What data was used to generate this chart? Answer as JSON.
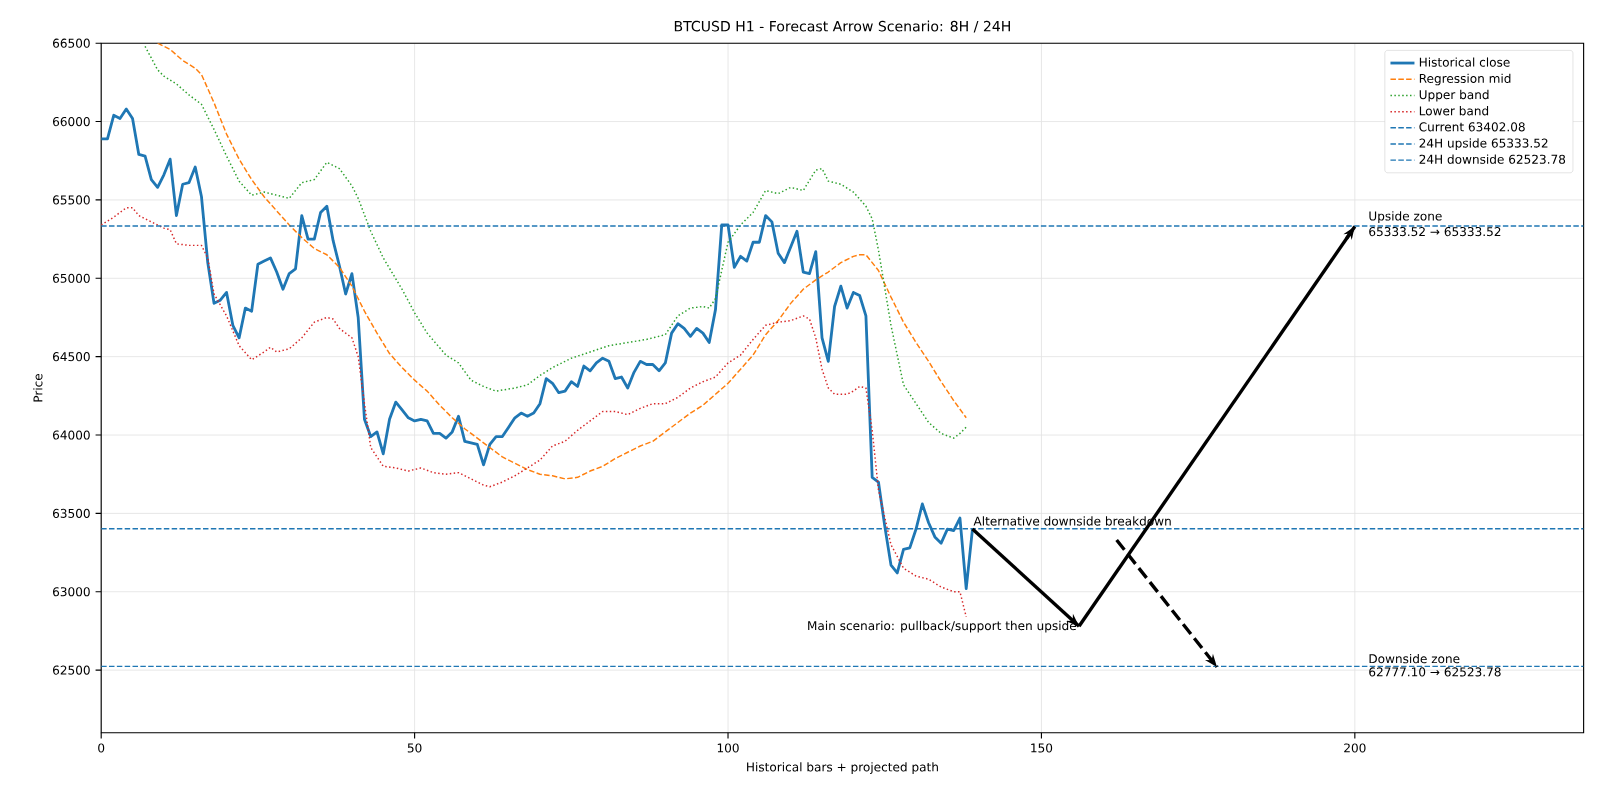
{
  "chart_data": {
    "type": "line",
    "title": "BTCUSD H1 - Forecast Arrow Scenario: 8H / 24H",
    "xlabel": "Historical bars + projected path",
    "ylabel": "Price",
    "xlim": [
      0,
      236.5
    ],
    "ylim": [
      62100,
      66500
    ],
    "xticks": [
      0,
      50,
      100,
      150,
      200
    ],
    "yticks": [
      62500,
      63000,
      63500,
      64000,
      64500,
      65000,
      65500,
      66000,
      66500
    ],
    "grid": true,
    "legend": "top right",
    "series": [
      {
        "name": "Historical close",
        "color": "#1f77b4",
        "line_style": "solid",
        "x": [
          0,
          1,
          2,
          3,
          4,
          5,
          6,
          7,
          8,
          9,
          10,
          11,
          12,
          13,
          14,
          15,
          16,
          17,
          18,
          19,
          20,
          21,
          22,
          23,
          24,
          25,
          26,
          27,
          28,
          29,
          30,
          31,
          32,
          33,
          34,
          35,
          36,
          37,
          38,
          39,
          40,
          41,
          42,
          43,
          44,
          45,
          46,
          47,
          48,
          49,
          50,
          51,
          52,
          53,
          54,
          55,
          56,
          57,
          58,
          59,
          60,
          61,
          62,
          63,
          64,
          65,
          66,
          67,
          68,
          69,
          70,
          71,
          72,
          73,
          74,
          75,
          76,
          77,
          78,
          79,
          80,
          81,
          82,
          83,
          84,
          85,
          86,
          87,
          88,
          89,
          90,
          91,
          92,
          93,
          94,
          95,
          96,
          97,
          98,
          99,
          100,
          101,
          102,
          103,
          104,
          105,
          106,
          107,
          108,
          109,
          110,
          111,
          112,
          113,
          114,
          115,
          116,
          117,
          118,
          119,
          120,
          121,
          122,
          123,
          124,
          125,
          126,
          127,
          128,
          129,
          130,
          131,
          132,
          133,
          134,
          135,
          136,
          137,
          138,
          139
        ],
        "values": [
          65890,
          65890,
          66040,
          66020,
          66080,
          66020,
          65790,
          65780,
          65630,
          65580,
          65660,
          65760,
          65400,
          65600,
          65610,
          65710,
          65520,
          65100,
          64840,
          64860,
          64910,
          64700,
          64620,
          64810,
          64790,
          65090,
          65110,
          65130,
          65040,
          64930,
          65030,
          65060,
          65400,
          65250,
          65250,
          65420,
          65460,
          65240,
          65080,
          64900,
          65030,
          64750,
          64100,
          63990,
          64020,
          63880,
          64100,
          64210,
          64160,
          64110,
          64090,
          64100,
          64090,
          64010,
          64010,
          63980,
          64020,
          64120,
          63960,
          63950,
          63940,
          63810,
          63940,
          63990,
          63990,
          64050,
          64110,
          64140,
          64120,
          64140,
          64200,
          64360,
          64330,
          64270,
          64280,
          64340,
          64310,
          64440,
          64410,
          64460,
          64490,
          64470,
          64360,
          64370,
          64300,
          64400,
          64470,
          64450,
          64450,
          64410,
          64460,
          64650,
          64710,
          64680,
          64630,
          64680,
          64650,
          64590,
          64800,
          65340,
          65340,
          65070,
          65140,
          65110,
          65230,
          65230,
          65400,
          65360,
          65160,
          65100,
          65200,
          65300,
          65040,
          65030,
          65170,
          64620,
          64470,
          64820,
          64950,
          64810,
          64910,
          64890,
          64760,
          63730,
          63700,
          63420,
          63170,
          63120,
          63270,
          63280,
          63400,
          63560,
          63440,
          63350,
          63310,
          63400,
          63390,
          63470,
          63020,
          63400
        ]
      },
      {
        "name": "Regression mid",
        "color": "#ff7f0e",
        "line_style": "dashed",
        "x": [
          9,
          11,
          13,
          15,
          16,
          18,
          20,
          22,
          24,
          26,
          28,
          30,
          32,
          34,
          36,
          38,
          40,
          42,
          44,
          46,
          48,
          50,
          52,
          54,
          56,
          58,
          60,
          62,
          64,
          66,
          68,
          70,
          72,
          74,
          76,
          78,
          80,
          82,
          84,
          86,
          88,
          90,
          92,
          94,
          96,
          98,
          100,
          102,
          104,
          106,
          108,
          110,
          112,
          114,
          116,
          118,
          120,
          121,
          122,
          124,
          126,
          128,
          130,
          132,
          134,
          136,
          138
        ],
        "values": [
          66500,
          66460,
          66390,
          66340,
          66300,
          66120,
          65920,
          65760,
          65630,
          65520,
          65430,
          65340,
          65260,
          65190,
          65150,
          65070,
          64950,
          64790,
          64650,
          64520,
          64430,
          64350,
          64280,
          64190,
          64110,
          64040,
          63980,
          63920,
          63860,
          63820,
          63780,
          63750,
          63740,
          63720,
          63730,
          63770,
          63800,
          63850,
          63890,
          63930,
          63960,
          64020,
          64080,
          64140,
          64190,
          64260,
          64330,
          64420,
          64510,
          64640,
          64730,
          64840,
          64930,
          64990,
          65040,
          65100,
          65140,
          65150,
          65150,
          65050,
          64880,
          64720,
          64590,
          64470,
          64340,
          64220,
          64110
        ]
      },
      {
        "name": "Upper band",
        "color": "#2ca02c",
        "line_style": "dotted",
        "x": [
          7,
          9,
          10,
          12,
          14,
          16,
          18,
          20,
          22,
          24,
          26,
          28,
          30,
          32,
          34,
          36,
          38,
          40,
          41,
          43,
          45,
          48,
          50,
          52,
          55,
          57,
          59,
          61,
          63,
          66,
          68,
          70,
          72,
          75,
          78,
          81,
          84,
          87,
          90,
          92,
          94,
          96,
          97,
          98,
          100,
          102,
          104,
          106,
          108,
          110,
          112,
          114,
          115,
          116,
          118,
          120,
          122,
          123,
          124,
          126,
          128,
          130,
          132,
          134,
          136,
          137,
          138
        ],
        "values": [
          66480,
          66330,
          66290,
          66240,
          66170,
          66110,
          65950,
          65780,
          65620,
          65530,
          65550,
          65530,
          65510,
          65610,
          65630,
          65740,
          65700,
          65590,
          65510,
          65300,
          65130,
          64930,
          64780,
          64650,
          64510,
          64460,
          64350,
          64310,
          64280,
          64300,
          64320,
          64380,
          64430,
          64490,
          64530,
          64570,
          64590,
          64610,
          64640,
          64760,
          64810,
          64820,
          64810,
          64870,
          65230,
          65340,
          65420,
          65560,
          65540,
          65580,
          65560,
          65690,
          65700,
          65620,
          65600,
          65550,
          65460,
          65380,
          65180,
          64700,
          64320,
          64200,
          64080,
          64010,
          63980,
          64010,
          64050
        ]
      },
      {
        "name": "Lower band",
        "color": "#d62728",
        "line_style": "dotted",
        "x": [
          0,
          2,
          4,
          5,
          6,
          8,
          10,
          11,
          12,
          14,
          16,
          17,
          18,
          20,
          22,
          24,
          26,
          27,
          28,
          30,
          32,
          34,
          36,
          37,
          38,
          40,
          41,
          42,
          43,
          45,
          47,
          49,
          51,
          53,
          55,
          57,
          59,
          61,
          62,
          64,
          66,
          68,
          70,
          72,
          74,
          76,
          78,
          80,
          82,
          84,
          86,
          88,
          90,
          92,
          94,
          96,
          98,
          100,
          102,
          104,
          106,
          108,
          110,
          112,
          113,
          114,
          115,
          116,
          117,
          119,
          120,
          121,
          122,
          123,
          124,
          126,
          128,
          130,
          132,
          134,
          136,
          137,
          138
        ],
        "values": [
          65340,
          65390,
          65450,
          65450,
          65400,
          65360,
          65320,
          65310,
          65220,
          65210,
          65210,
          65130,
          64900,
          64760,
          64570,
          64480,
          64530,
          64560,
          64530,
          64550,
          64620,
          64720,
          64750,
          64740,
          64680,
          64620,
          64500,
          64200,
          63920,
          63800,
          63790,
          63770,
          63790,
          63760,
          63750,
          63760,
          63720,
          63680,
          63670,
          63700,
          63740,
          63790,
          63840,
          63930,
          63960,
          64030,
          64090,
          64150,
          64150,
          64130,
          64170,
          64200,
          64200,
          64240,
          64300,
          64340,
          64370,
          64460,
          64510,
          64610,
          64700,
          64720,
          64730,
          64760,
          64740,
          64620,
          64420,
          64300,
          64260,
          64260,
          64280,
          64310,
          64300,
          64030,
          63650,
          63300,
          63150,
          63100,
          63080,
          63030,
          63000,
          63000,
          62840
        ]
      },
      {
        "color": "#000000",
        "line_style": "solid",
        "x": [
          139,
          156
        ],
        "values": [
          63400,
          62780
        ]
      },
      {
        "color": "#000000",
        "line_style": "solid",
        "x": [
          156,
          200
        ],
        "values": [
          62780,
          65330
        ]
      },
      {
        "color": "#000000",
        "line_style": "dashed",
        "x": [
          162,
          178
        ],
        "values": [
          63330,
          62520
        ]
      }
    ],
    "ref_lines": [
      {
        "axis": "y",
        "value": 63402.08,
        "label": "Current 63402.08",
        "color": "#1f77b4",
        "line_style": "dashed"
      },
      {
        "axis": "y",
        "value": 65333.52,
        "label": "24H upside 65333.52",
        "color": "#1f77b4",
        "line_style": "dashed"
      },
      {
        "axis": "y",
        "value": 62523.78,
        "label": "24H downside 62523.78",
        "color": "#1f77b4",
        "line_style": "dashed"
      }
    ],
    "annotations": [
      {
        "text": "Alternative downside breakdown",
        "x": 139,
        "y": 63402.08
      },
      {
        "text": "Main scenario: pullback/support then upside",
        "x": 156,
        "y": 62777.1
      },
      {
        "text": "Upside zone",
        "x": 202,
        "y": 65333.52
      },
      {
        "text": "65333.52 → 65333.52",
        "x": 202,
        "y": 65333.52
      },
      {
        "text": "Downside zone",
        "x": 202,
        "y": 62523.78
      },
      {
        "text": "62777.10 → 62523.78",
        "x": 202,
        "y": 62523.78
      }
    ]
  }
}
